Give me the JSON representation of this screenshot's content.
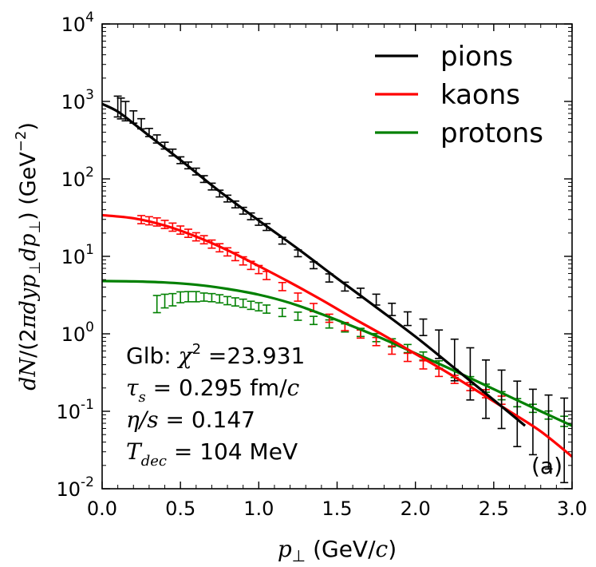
{
  "chart_data": {
    "type": "line",
    "xlabel": "p⊥ (GeV/c)",
    "ylabel": "dN/(2πdy p⊥ dp⊥) (GeV⁻²)",
    "xlim": [
      0.0,
      3.0
    ],
    "ylim": [
      0.01,
      10000
    ],
    "yscale": "log",
    "x_ticks": [
      "0.0",
      "0.5",
      "1.0",
      "1.5",
      "2.0",
      "2.5",
      "3.0"
    ],
    "y_ticks": [
      {
        "base": "10",
        "exp": "-2",
        "value": 0.01
      },
      {
        "base": "10",
        "exp": "-1",
        "value": 0.1
      },
      {
        "base": "10",
        "exp": "0",
        "value": 1
      },
      {
        "base": "10",
        "exp": "1",
        "value": 10
      },
      {
        "base": "10",
        "exp": "2",
        "value": 100
      },
      {
        "base": "10",
        "exp": "3",
        "value": 1000
      },
      {
        "base": "10",
        "exp": "4",
        "value": 10000
      }
    ],
    "legend_position": "top-right",
    "series": [
      {
        "name": "pions",
        "color": "#000000",
        "curve_x": [
          0.0,
          0.1,
          0.2,
          0.3,
          0.5,
          0.75,
          1.0,
          1.25,
          1.5,
          1.75,
          2.0,
          2.25,
          2.5,
          2.7
        ],
        "curve_y": [
          930,
          740,
          520,
          360,
          175,
          69,
          29,
          12.5,
          5.2,
          2.2,
          0.92,
          0.36,
          0.14,
          0.065
        ],
        "points_x": [
          0.1,
          0.12,
          0.15,
          0.2,
          0.25,
          0.3,
          0.35,
          0.4,
          0.45,
          0.5,
          0.55,
          0.6,
          0.65,
          0.7,
          0.75,
          0.8,
          0.85,
          0.9,
          0.95,
          1.0,
          1.05,
          1.15,
          1.25,
          1.35,
          1.45,
          1.55,
          1.65,
          1.75,
          1.85,
          1.95,
          2.05,
          2.15,
          2.25,
          2.35,
          2.45,
          2.55,
          2.65,
          2.75,
          2.85,
          2.95
        ],
        "points_y": [
          900,
          850,
          780,
          640,
          520,
          400,
          330,
          270,
          220,
          175,
          150,
          125,
          100,
          80,
          65,
          56,
          47,
          39,
          33,
          28,
          24,
          16,
          11,
          7.7,
          5.3,
          4.1,
          3.4,
          2.8,
          2.1,
          1.6,
          1.25,
          0.8,
          0.55,
          0.4,
          0.27,
          0.2,
          0.14,
          0.11,
          0.09,
          0.08
        ],
        "errors_rel": [
          0.3,
          0.3,
          0.28,
          0.18,
          0.15,
          0.12,
          0.12,
          0.1,
          0.1,
          0.1,
          0.1,
          0.1,
          0.1,
          0.1,
          0.1,
          0.1,
          0.1,
          0.1,
          0.1,
          0.1,
          0.1,
          0.1,
          0.1,
          0.1,
          0.12,
          0.13,
          0.14,
          0.16,
          0.18,
          0.2,
          0.24,
          0.4,
          0.55,
          0.65,
          0.7,
          0.7,
          0.75,
          0.75,
          0.8,
          0.85
        ]
      },
      {
        "name": "kaons",
        "color": "#ff0000",
        "curve_x": [
          0.0,
          0.2,
          0.4,
          0.6,
          0.8,
          1.0,
          1.2,
          1.4,
          1.6,
          1.8,
          2.0,
          2.2,
          2.4,
          2.6,
          2.8,
          3.0
        ],
        "curve_y": [
          34,
          31,
          25,
          18,
          12,
          7.5,
          4.6,
          2.75,
          1.6,
          0.95,
          0.55,
          0.32,
          0.18,
          0.1,
          0.055,
          0.026
        ],
        "points_x": [
          0.25,
          0.3,
          0.35,
          0.4,
          0.45,
          0.5,
          0.55,
          0.6,
          0.65,
          0.7,
          0.75,
          0.8,
          0.85,
          0.9,
          0.95,
          1.0,
          1.05,
          1.15,
          1.25,
          1.35,
          1.45,
          1.55,
          1.65,
          1.75,
          1.85,
          1.95,
          2.05,
          2.15,
          2.25,
          2.35,
          2.45,
          2.55
        ],
        "points_y": [
          30,
          29,
          28,
          26,
          24,
          22,
          20,
          18,
          16.5,
          14.5,
          13,
          11.5,
          10,
          8.8,
          7.7,
          6.8,
          5.7,
          4.1,
          3.0,
          2.2,
          1.6,
          1.25,
          1.0,
          0.8,
          0.62,
          0.5,
          0.4,
          0.32,
          0.26,
          0.21,
          0.17,
          0.14
        ],
        "errors_rel": [
          0.12,
          0.12,
          0.12,
          0.12,
          0.12,
          0.12,
          0.12,
          0.12,
          0.12,
          0.12,
          0.12,
          0.12,
          0.12,
          0.12,
          0.12,
          0.12,
          0.12,
          0.12,
          0.12,
          0.12,
          0.12,
          0.12,
          0.12,
          0.12,
          0.12,
          0.12,
          0.12,
          0.12,
          0.12,
          0.12,
          0.12,
          0.12
        ]
      },
      {
        "name": "protons",
        "color": "#008000",
        "curve_x": [
          0.0,
          0.2,
          0.4,
          0.6,
          0.8,
          1.0,
          1.2,
          1.4,
          1.6,
          1.8,
          2.0,
          2.2,
          2.4,
          2.6,
          2.8,
          3.0
        ],
        "curve_y": [
          4.8,
          4.75,
          4.6,
          4.3,
          3.8,
          3.2,
          2.5,
          1.8,
          1.25,
          0.85,
          0.56,
          0.37,
          0.24,
          0.155,
          0.1,
          0.065
        ],
        "points_x": [
          0.35,
          0.4,
          0.45,
          0.5,
          0.55,
          0.6,
          0.65,
          0.7,
          0.75,
          0.8,
          0.85,
          0.9,
          0.95,
          1.0,
          1.05,
          1.15,
          1.25,
          1.35,
          1.45,
          1.55,
          1.65,
          1.75,
          1.85,
          1.95,
          2.05,
          2.15,
          2.25,
          2.35,
          2.45,
          2.55,
          2.65,
          2.75,
          2.85,
          2.95
        ],
        "points_y": [
          2.5,
          2.7,
          2.8,
          3.0,
          3.05,
          3.05,
          3.0,
          2.95,
          2.85,
          2.7,
          2.6,
          2.5,
          2.35,
          2.25,
          2.1,
          1.9,
          1.7,
          1.5,
          1.35,
          1.2,
          1.05,
          0.9,
          0.77,
          0.65,
          0.52,
          0.4,
          0.31,
          0.25,
          0.2,
          0.16,
          0.13,
          0.11,
          0.09,
          0.075
        ],
        "errors_rel": [
          0.25,
          0.2,
          0.18,
          0.16,
          0.15,
          0.15,
          0.12,
          0.12,
          0.12,
          0.12,
          0.12,
          0.12,
          0.12,
          0.12,
          0.12,
          0.12,
          0.12,
          0.12,
          0.12,
          0.12,
          0.12,
          0.12,
          0.12,
          0.12,
          0.12,
          0.12,
          0.12,
          0.12,
          0.12,
          0.12,
          0.12,
          0.12,
          0.12,
          0.15
        ]
      }
    ],
    "annotation_lines": [
      {
        "prefix": "Glb: ",
        "sym": "χ",
        "sup": "2",
        "sub": "",
        "text": " =23.931"
      },
      {
        "prefix": "",
        "sym": "τ",
        "sup": "",
        "sub": "s",
        "text": " = 0.295 fm/c"
      },
      {
        "prefix": "",
        "sym": "η/s",
        "sup": "",
        "sub": "",
        "text": " = 0.147"
      },
      {
        "prefix": "",
        "sym": "T",
        "sup": "",
        "sub": "dec",
        "text": " = 104 MeV"
      }
    ],
    "panel_label": "(a)"
  }
}
